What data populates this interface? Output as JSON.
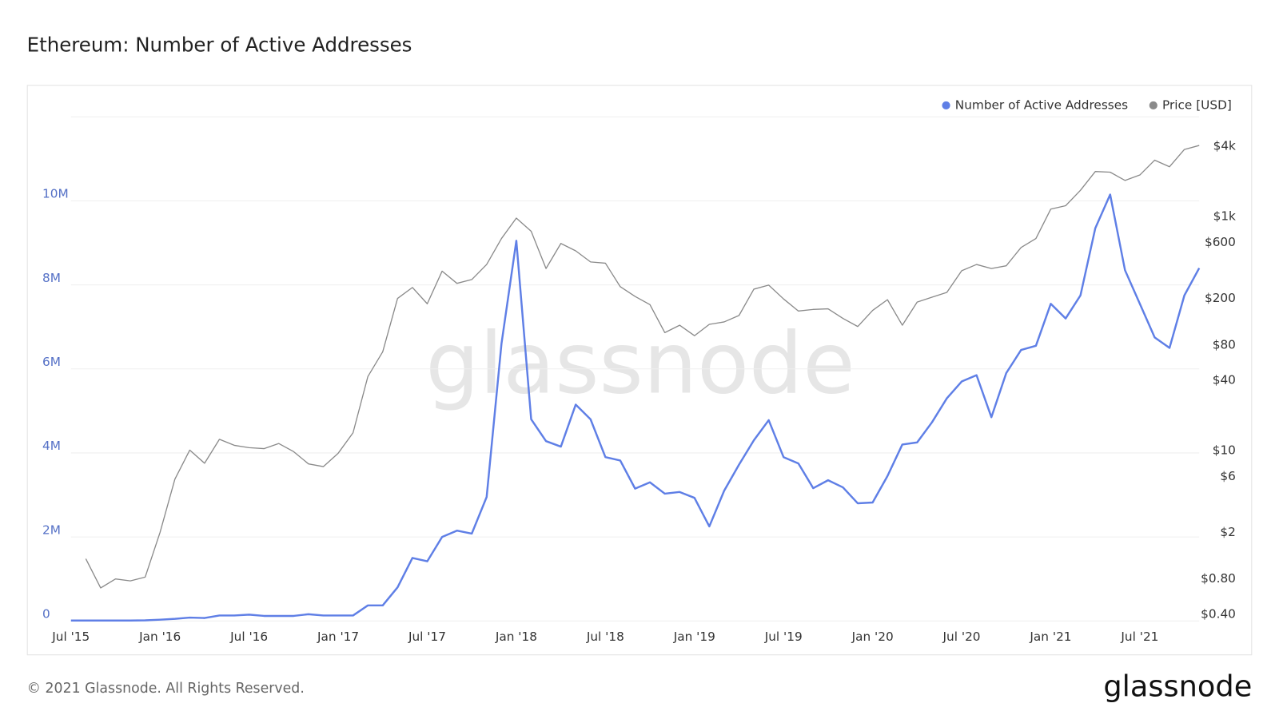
{
  "chart_data": {
    "type": "line",
    "title": "Ethereum: Number of Active Addresses",
    "watermark": "glassnode",
    "footer": "© 2021 Glassnode. All Rights Reserved.",
    "logo": "glassnode",
    "legend": "top-right",
    "grid": true,
    "x": [
      "2015-07",
      "2015-08",
      "2015-09",
      "2015-10",
      "2015-11",
      "2015-12",
      "2016-01",
      "2016-02",
      "2016-03",
      "2016-04",
      "2016-05",
      "2016-06",
      "2016-07",
      "2016-08",
      "2016-09",
      "2016-10",
      "2016-11",
      "2016-12",
      "2017-01",
      "2017-02",
      "2017-03",
      "2017-04",
      "2017-05",
      "2017-06",
      "2017-07",
      "2017-08",
      "2017-09",
      "2017-10",
      "2017-11",
      "2017-12",
      "2018-01",
      "2018-02",
      "2018-03",
      "2018-04",
      "2018-05",
      "2018-06",
      "2018-07",
      "2018-08",
      "2018-09",
      "2018-10",
      "2018-11",
      "2018-12",
      "2019-01",
      "2019-02",
      "2019-03",
      "2019-04",
      "2019-05",
      "2019-06",
      "2019-07",
      "2019-08",
      "2019-09",
      "2019-10",
      "2019-11",
      "2019-12",
      "2020-01",
      "2020-02",
      "2020-03",
      "2020-04",
      "2020-05",
      "2020-06",
      "2020-07",
      "2020-08",
      "2020-09",
      "2020-10",
      "2020-11",
      "2020-12",
      "2021-01",
      "2021-02",
      "2021-03",
      "2021-04",
      "2021-05",
      "2021-06",
      "2021-07",
      "2021-08",
      "2021-09",
      "2021-10",
      "2021-11"
    ],
    "xticks": [
      {
        "value": "2015-07",
        "label": "Jul '15"
      },
      {
        "value": "2016-01",
        "label": "Jan '16"
      },
      {
        "value": "2016-07",
        "label": "Jul '16"
      },
      {
        "value": "2017-01",
        "label": "Jan '17"
      },
      {
        "value": "2017-07",
        "label": "Jul '17"
      },
      {
        "value": "2018-01",
        "label": "Jan '18"
      },
      {
        "value": "2018-07",
        "label": "Jul '18"
      },
      {
        "value": "2019-01",
        "label": "Jan '19"
      },
      {
        "value": "2019-07",
        "label": "Jul '19"
      },
      {
        "value": "2020-01",
        "label": "Jan '20"
      },
      {
        "value": "2020-07",
        "label": "Jul '20"
      },
      {
        "value": "2021-01",
        "label": "Jan '21"
      },
      {
        "value": "2021-07",
        "label": "Jul '21"
      }
    ],
    "ylim": [
      0,
      12000000
    ],
    "yticks": [
      0,
      {
        "value": 2000000,
        "label": "2M"
      },
      {
        "value": 4000000,
        "label": "4M"
      },
      {
        "value": 6000000,
        "label": "6M"
      },
      {
        "value": 8000000,
        "label": "8M"
      },
      {
        "value": 10000000,
        "label": "10M"
      }
    ],
    "y2lim": [
      0.35,
      7130
    ],
    "y2scale": "log",
    "y2ticks": [
      {
        "value": 4000,
        "label": "$4k"
      },
      {
        "value": 1000,
        "label": "$1k"
      },
      {
        "value": 600,
        "label": "$600"
      },
      {
        "value": 200,
        "label": "$200"
      },
      {
        "value": 80,
        "label": "$80"
      },
      {
        "value": 40,
        "label": "$40"
      },
      {
        "value": 10,
        "label": "$10"
      },
      {
        "value": 6,
        "label": "$6"
      },
      {
        "value": 2,
        "label": "$2"
      },
      {
        "value": 0.8,
        "label": "$0.80"
      },
      {
        "value": 0.4,
        "label": "$0.40"
      }
    ],
    "series": [
      {
        "name": "Number of Active Addresses",
        "color": "#5f7fe6",
        "axis": "y",
        "values": [
          10000,
          10000,
          10000,
          10000,
          10000,
          15000,
          30000,
          50000,
          80000,
          70000,
          130000,
          130000,
          150000,
          120000,
          120000,
          120000,
          160000,
          130000,
          130000,
          130000,
          370000,
          370000,
          800000,
          1500000,
          1420000,
          2000000,
          2150000,
          2080000,
          2950000,
          6600000,
          9050000,
          4800000,
          4280000,
          4150000,
          5150000,
          4800000,
          3900000,
          3820000,
          3150000,
          3300000,
          3030000,
          3070000,
          2930000,
          2250000,
          3100000,
          3720000,
          4300000,
          4780000,
          3900000,
          3750000,
          3160000,
          3350000,
          3180000,
          2800000,
          2820000,
          3450000,
          4200000,
          4250000,
          4730000,
          5300000,
          5700000,
          5850000,
          4850000,
          5900000,
          6450000,
          6550000,
          7550000,
          7200000,
          7750000,
          9350000,
          10150000,
          8350000,
          7550000,
          6750000,
          6500000,
          7750000,
          8400000
        ]
      },
      {
        "name": "Price [USD]",
        "color": "#8a8a8a",
        "axis": "y2",
        "values": [
          null,
          1.19,
          0.67,
          0.8,
          0.77,
          0.83,
          2.0,
          5.7,
          10.1,
          7.8,
          12.5,
          11.1,
          10.6,
          10.4,
          11.5,
          9.8,
          7.7,
          7.3,
          9.5,
          14.2,
          43,
          70,
          200,
          248,
          180,
          342,
          269,
          290,
          390,
          650,
          972,
          750,
          360,
          590,
          510,
          410,
          400,
          252,
          208,
          177,
          102,
          118,
          96,
          120,
          126,
          143,
          240,
          260,
          198,
          156,
          161,
          163,
          135,
          115,
          158,
          195,
          118,
          186,
          205,
          225,
          345,
          390,
          360,
          380,
          545,
          650,
          1160,
          1240,
          1680,
          2430,
          2400,
          2040,
          2270,
          3040,
          2670,
          3750,
          4060
        ]
      }
    ]
  }
}
